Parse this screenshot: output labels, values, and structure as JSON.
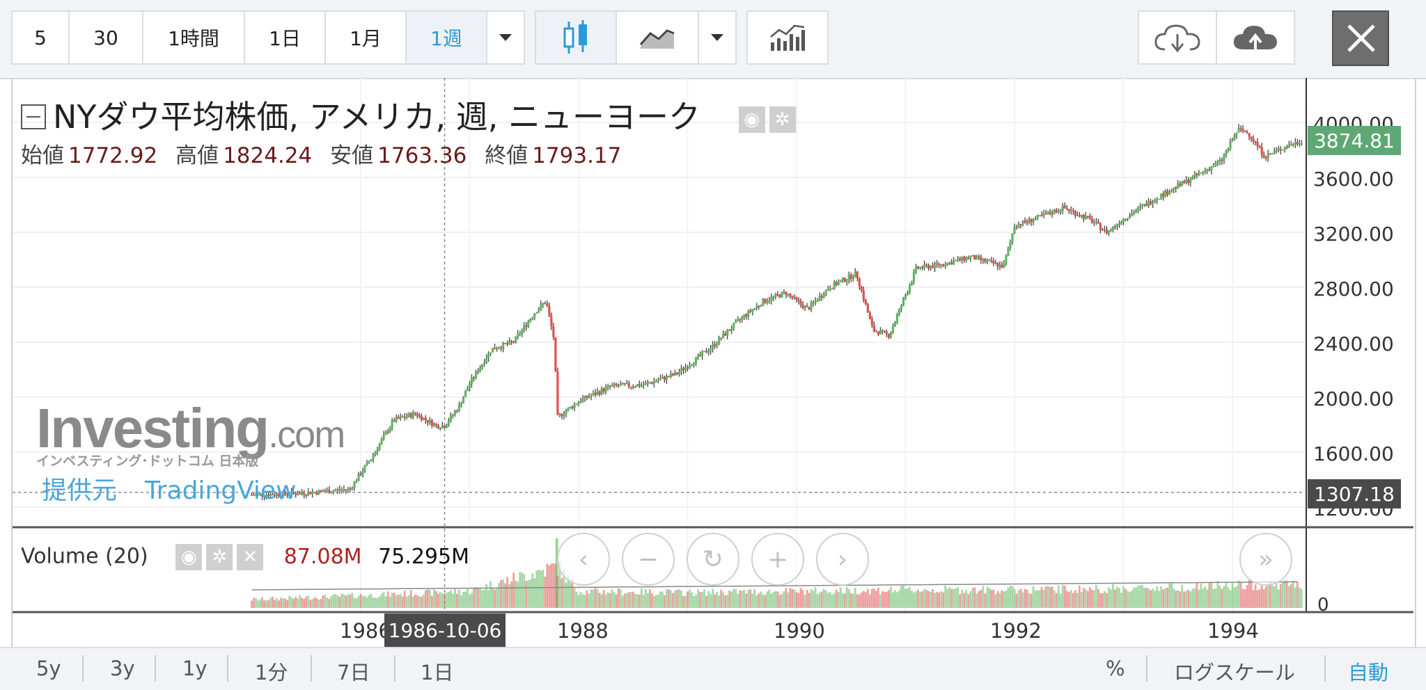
{
  "toolbar": {
    "intervals": [
      "5",
      "30",
      "1時間",
      "1日",
      "1月",
      "1週"
    ],
    "active_interval": "1週"
  },
  "legend": {
    "title": "NYダウ平均株価, アメリカ, 週, ニューヨーク",
    "open_label": "始値",
    "open": "1772.92",
    "high_label": "高値",
    "high": "1824.24",
    "low_label": "安値",
    "low": "1763.36",
    "close_label": "終値",
    "close": "1793.17"
  },
  "price_axis": {
    "ticks": [
      "4000.00",
      "3600.00",
      "3200.00",
      "2800.00",
      "2400.00",
      "2000.00",
      "1600.00",
      "1200.00"
    ],
    "last_price": "3874.81",
    "crosshair_price": "1307.18"
  },
  "volume": {
    "label": "Volume (20)",
    "value1": "87.08M",
    "value2": "75.295M",
    "zero_label": "0"
  },
  "time_axis": {
    "labels": [
      "1986",
      "1988",
      "1990",
      "1992",
      "1994"
    ],
    "crosshair_date": "1986-10-06"
  },
  "watermark": {
    "brand": "Investing",
    "brand_suffix": ".com",
    "brand_sub": "インベスティング･ドットコム 日本版",
    "provider_label": "提供元",
    "provider": "TradingView"
  },
  "bottom": {
    "ranges": [
      "5y",
      "3y",
      "1y",
      "1分",
      "7日",
      "1日"
    ],
    "percent": "%",
    "log_scale": "ログスケール",
    "auto": "自動"
  },
  "colors": {
    "up": "#5cb85c",
    "down": "#e05050",
    "accent": "#2b9bd8",
    "last_price_bg": "#5fa875"
  },
  "chart_data": {
    "type": "line",
    "title": "NYダウ平均株価, アメリカ, 週, ニューヨーク",
    "x_unit": "year",
    "ylim": [
      1200,
      4000
    ],
    "x": [
      1985.0,
      1985.3,
      1985.6,
      1985.9,
      1986.1,
      1986.3,
      1986.5,
      1986.7,
      1986.77,
      1986.9,
      1987.0,
      1987.2,
      1987.4,
      1987.6,
      1987.7,
      1987.78,
      1987.8,
      1988.0,
      1988.3,
      1988.6,
      1988.9,
      1989.2,
      1989.5,
      1989.7,
      1989.9,
      1990.1,
      1990.3,
      1990.55,
      1990.7,
      1990.85,
      1991.1,
      1991.3,
      1991.6,
      1991.9,
      1992.0,
      1992.2,
      1992.45,
      1992.7,
      1992.85,
      1993.0,
      1993.3,
      1993.6,
      1993.9,
      1994.05,
      1994.15,
      1994.3,
      1994.5,
      1994.65
    ],
    "y": [
      1290,
      1295,
      1310,
      1330,
      1560,
      1830,
      1880,
      1790,
      1793,
      1930,
      2100,
      2350,
      2400,
      2620,
      2700,
      2400,
      1850,
      1970,
      2080,
      2090,
      2170,
      2350,
      2580,
      2700,
      2760,
      2640,
      2800,
      2900,
      2490,
      2450,
      2940,
      2960,
      3020,
      2950,
      3250,
      3300,
      3380,
      3290,
      3200,
      3300,
      3450,
      3580,
      3720,
      3950,
      3920,
      3750,
      3830,
      3870
    ],
    "volume_x": [
      1985.0,
      1986.0,
      1987.0,
      1987.8,
      1988.0,
      1989.0,
      1990.0,
      1991.0,
      1992.0,
      1993.0,
      1994.0,
      1994.65
    ],
    "volume_M": [
      30,
      45,
      60,
      150,
      60,
      55,
      60,
      65,
      65,
      70,
      80,
      87.08
    ],
    "time_ticks": [
      "1986",
      "1988",
      "1990",
      "1992",
      "1994"
    ],
    "yticks": [
      "4000.00",
      "3600.00",
      "3200.00",
      "2800.00",
      "2400.00",
      "2000.00",
      "1600.00",
      "1200.00"
    ]
  }
}
